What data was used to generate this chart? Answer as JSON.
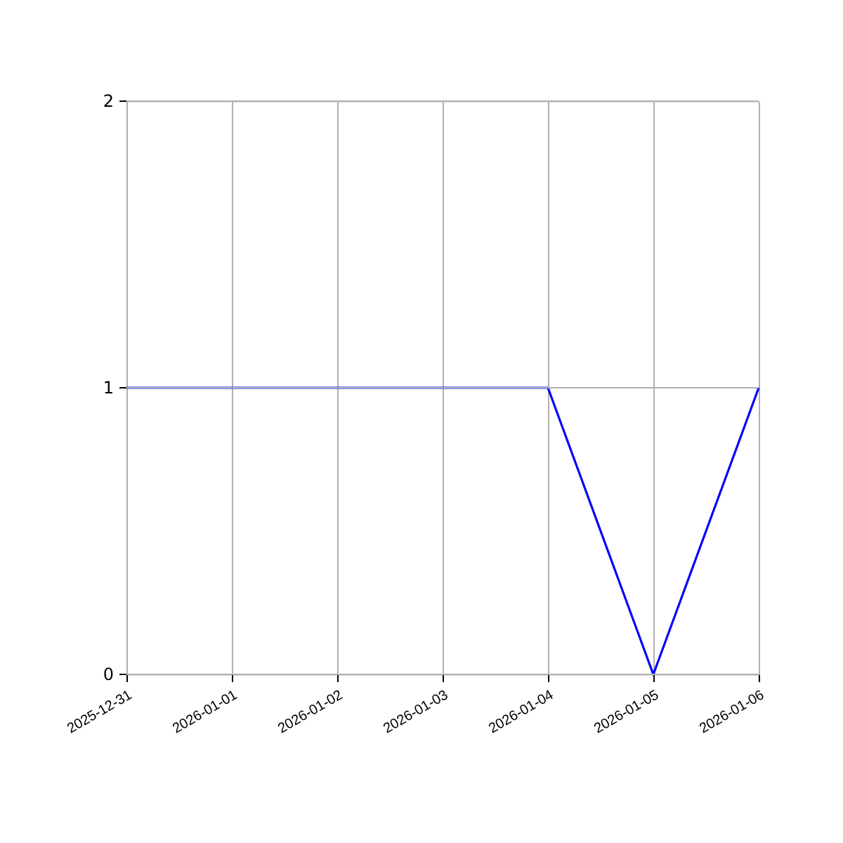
{
  "chart_data": {
    "type": "line",
    "x": [
      "2025-12-31",
      "2026-01-01",
      "2026-01-02",
      "2026-01-03",
      "2026-01-04",
      "2026-01-05",
      "2026-01-06"
    ],
    "series": [
      {
        "color": "#0000ff",
        "values": [
          1,
          1,
          1,
          1,
          1,
          0,
          1
        ]
      }
    ],
    "xlim": [
      "2025-12-31",
      "2026-01-06"
    ],
    "xticks": [
      "2025-12-31",
      "2026-01-01",
      "2026-01-02",
      "2026-01-03",
      "2026-01-04",
      "2026-01-05",
      "2026-01-06"
    ],
    "ylim": [
      0,
      2
    ],
    "yticks": [
      0,
      1,
      2
    ],
    "grid": true,
    "marker": "none",
    "line_style": "solid"
  }
}
